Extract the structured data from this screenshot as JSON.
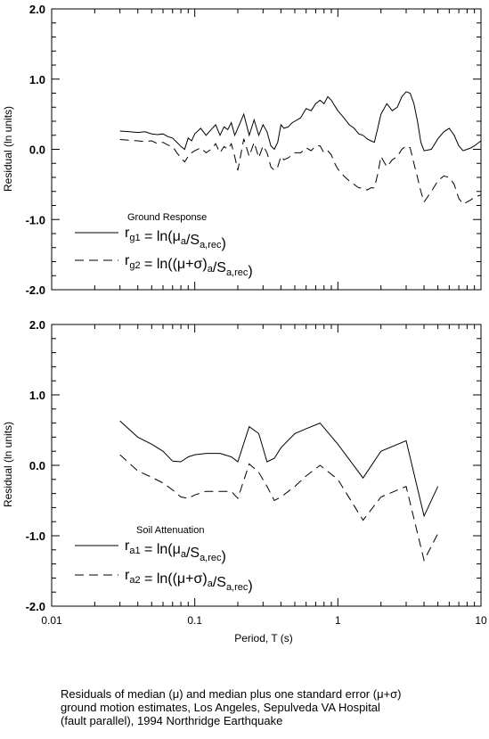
{
  "chart_data": [
    {
      "type": "line",
      "panel": "top",
      "x_scale": "log",
      "xlim": [
        0.01,
        10
      ],
      "ylim": [
        -2.0,
        2.0
      ],
      "yticks": [
        "-2.0",
        "-1.0",
        "0.0",
        "1.0",
        "2.0"
      ],
      "ylabel": "Residual (ln units)",
      "legend_title": "Ground Response",
      "legend_placement": "lower-left",
      "series": [
        {
          "name": "rg1 = ln(μa/Sa,rec)",
          "label_main": "r",
          "label_sub": "g1",
          "style": "solid",
          "x": [
            0.03,
            0.035,
            0.04,
            0.045,
            0.05,
            0.055,
            0.06,
            0.065,
            0.07,
            0.075,
            0.08,
            0.085,
            0.09,
            0.095,
            0.1,
            0.11,
            0.12,
            0.13,
            0.14,
            0.15,
            0.16,
            0.17,
            0.18,
            0.19,
            0.2,
            0.22,
            0.24,
            0.26,
            0.28,
            0.3,
            0.32,
            0.34,
            0.36,
            0.38,
            0.4,
            0.42,
            0.45,
            0.48,
            0.5,
            0.55,
            0.6,
            0.65,
            0.7,
            0.75,
            0.8,
            0.85,
            0.9,
            0.95,
            1.0,
            1.1,
            1.2,
            1.3,
            1.4,
            1.5,
            1.6,
            1.7,
            1.8,
            1.9,
            2.0,
            2.2,
            2.4,
            2.6,
            2.8,
            3.0,
            3.2,
            3.4,
            3.6,
            3.8,
            4.0,
            4.5,
            5.0,
            5.5,
            6.0,
            6.5,
            7.0,
            7.5,
            8.0,
            8.5,
            9.0,
            10.0
          ],
          "y": [
            0.26,
            0.25,
            0.24,
            0.25,
            0.22,
            0.21,
            0.22,
            0.18,
            0.16,
            0.1,
            0.04,
            0.0,
            0.16,
            0.12,
            0.22,
            0.3,
            0.2,
            0.28,
            0.35,
            0.2,
            0.32,
            0.28,
            0.38,
            0.2,
            0.3,
            0.5,
            0.2,
            0.42,
            0.2,
            0.35,
            0.25,
            0.05,
            0.0,
            0.1,
            0.35,
            0.3,
            0.32,
            0.38,
            0.4,
            0.45,
            0.58,
            0.55,
            0.65,
            0.7,
            0.65,
            0.75,
            0.7,
            0.62,
            0.55,
            0.45,
            0.35,
            0.3,
            0.22,
            0.2,
            0.15,
            0.12,
            0.1,
            0.3,
            0.5,
            0.65,
            0.55,
            0.6,
            0.75,
            0.82,
            0.8,
            0.65,
            0.4,
            0.1,
            -0.02,
            0.0,
            0.15,
            0.25,
            0.3,
            0.2,
            0.05,
            -0.02,
            0.0,
            0.02,
            0.05,
            0.12
          ]
        },
        {
          "name": "rg2 = ln((μ+σ)a/Sa,rec)",
          "label_main": "r",
          "label_sub": "g2",
          "style": "dashed",
          "x": [
            0.03,
            0.035,
            0.04,
            0.045,
            0.05,
            0.055,
            0.06,
            0.065,
            0.07,
            0.075,
            0.08,
            0.085,
            0.09,
            0.095,
            0.1,
            0.11,
            0.12,
            0.13,
            0.14,
            0.15,
            0.16,
            0.17,
            0.18,
            0.19,
            0.2,
            0.22,
            0.24,
            0.26,
            0.28,
            0.3,
            0.32,
            0.34,
            0.36,
            0.38,
            0.4,
            0.42,
            0.45,
            0.48,
            0.5,
            0.55,
            0.6,
            0.65,
            0.7,
            0.75,
            0.8,
            0.85,
            0.9,
            0.95,
            1.0,
            1.1,
            1.2,
            1.3,
            1.4,
            1.5,
            1.6,
            1.7,
            1.8,
            1.9,
            2.0,
            2.2,
            2.4,
            2.6,
            2.8,
            3.0,
            3.2,
            3.4,
            3.6,
            3.8,
            4.0,
            4.5,
            5.0,
            5.5,
            6.0,
            6.5,
            7.0,
            7.5,
            8.0,
            8.5,
            9.0,
            10.0
          ],
          "y": [
            0.14,
            0.13,
            0.12,
            0.11,
            0.12,
            0.08,
            0.1,
            0.06,
            0.04,
            -0.05,
            -0.12,
            -0.18,
            -0.1,
            -0.05,
            -0.02,
            0.02,
            -0.05,
            0.0,
            0.08,
            -0.05,
            0.04,
            0.0,
            0.08,
            -0.1,
            -0.3,
            0.15,
            -0.1,
            0.1,
            -0.12,
            0.05,
            -0.05,
            -0.25,
            -0.3,
            -0.25,
            -0.1,
            -0.15,
            -0.12,
            -0.08,
            -0.05,
            -0.05,
            0.02,
            -0.02,
            0.05,
            0.05,
            -0.05,
            -0.02,
            -0.08,
            -0.2,
            -0.28,
            -0.38,
            -0.45,
            -0.5,
            -0.55,
            -0.55,
            -0.58,
            -0.55,
            -0.55,
            -0.35,
            -0.1,
            -0.25,
            -0.15,
            -0.1,
            0.0,
            0.05,
            0.02,
            -0.2,
            -0.4,
            -0.6,
            -0.75,
            -0.6,
            -0.45,
            -0.38,
            -0.4,
            -0.5,
            -0.7,
            -0.78,
            -0.75,
            -0.72,
            -0.68,
            -0.65
          ]
        }
      ]
    },
    {
      "type": "line",
      "panel": "bottom",
      "x_scale": "log",
      "xlim": [
        0.01,
        10
      ],
      "ylim": [
        -2.0,
        2.0
      ],
      "yticks": [
        "-2.0",
        "-1.0",
        "0.0",
        "1.0",
        "2.0"
      ],
      "xticks": [
        "0.01",
        "0.1",
        "1",
        "10"
      ],
      "xlabel": "Period, T (s)",
      "ylabel": "Residual (ln units)",
      "legend_title": "Soil Attenuation",
      "legend_placement": "lower-left",
      "series": [
        {
          "name": "ra1 = ln(μa/Sa,rec)",
          "label_main": "r",
          "label_sub": "a1",
          "style": "solid",
          "x": [
            0.03,
            0.04,
            0.05,
            0.06,
            0.07,
            0.08,
            0.09,
            0.1,
            0.12,
            0.15,
            0.18,
            0.2,
            0.24,
            0.28,
            0.32,
            0.36,
            0.4,
            0.5,
            0.6,
            0.75,
            1.0,
            1.5,
            2.0,
            3.0,
            4.0,
            5.0
          ],
          "y": [
            0.63,
            0.4,
            0.3,
            0.2,
            0.06,
            0.05,
            0.12,
            0.15,
            0.17,
            0.17,
            0.12,
            0.05,
            0.55,
            0.45,
            0.05,
            0.1,
            0.25,
            0.45,
            0.52,
            0.6,
            0.3,
            -0.18,
            0.2,
            0.35,
            -0.72,
            -0.3
          ]
        },
        {
          "name": "ra2 = ln((μ+σ)a/Sa,rec)",
          "label_main": "r",
          "label_sub": "a2",
          "style": "dashed",
          "x": [
            0.03,
            0.04,
            0.05,
            0.06,
            0.07,
            0.08,
            0.09,
            0.1,
            0.12,
            0.15,
            0.18,
            0.2,
            0.24,
            0.28,
            0.32,
            0.36,
            0.4,
            0.5,
            0.6,
            0.75,
            1.0,
            1.5,
            2.0,
            3.0,
            4.0,
            5.0
          ],
          "y": [
            0.15,
            -0.08,
            -0.17,
            -0.25,
            -0.35,
            -0.45,
            -0.47,
            -0.42,
            -0.37,
            -0.37,
            -0.37,
            -0.47,
            0.02,
            -0.1,
            -0.3,
            -0.5,
            -0.45,
            -0.3,
            -0.15,
            0.0,
            -0.2,
            -0.78,
            -0.45,
            -0.3,
            -1.35,
            -0.97
          ]
        }
      ]
    }
  ],
  "legend_expr": {
    "eq": "= ln(",
    "mu": "μ",
    "mu_sigma": "(μ+σ)",
    "a": "a",
    "sa": "/S",
    "sa_sub": "a,rec",
    "close": ")",
    "open_double": "= ln(",
    "close_double": ")"
  },
  "caption": {
    "line1": "Residuals of median (μ) and median plus one standard error (μ+σ)",
    "line2": "ground motion estimates, Los Angeles, Sepulveda VA Hospital",
    "line3": "(fault parallel), 1994 Northridge Earthquake"
  }
}
